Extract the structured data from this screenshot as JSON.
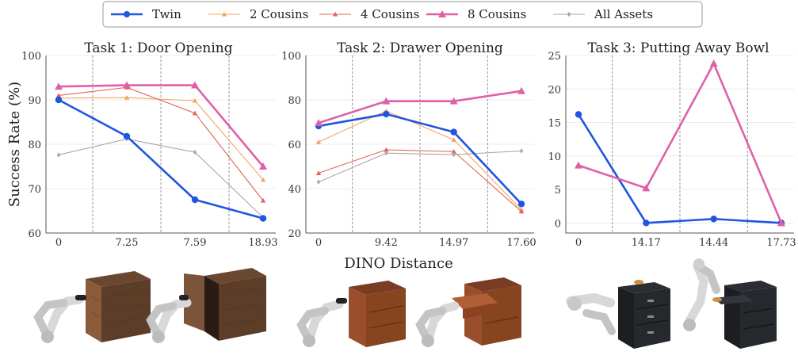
{
  "legend": {
    "items": [
      {
        "name": "Twin",
        "color": "#1f55e0",
        "marker": "circle",
        "width": 2.6
      },
      {
        "name": "2 Cousins",
        "color": "#f4a560",
        "marker": "triangle",
        "width": 1.1
      },
      {
        "name": "4 Cousins",
        "color": "#e0665e",
        "marker": "triangle",
        "width": 1.1
      },
      {
        "name": "8 Cousins",
        "color": "#e060a8",
        "marker": "triangle",
        "width": 2.6
      },
      {
        "name": "All Assets",
        "color": "#a8a8a8",
        "marker": "diamond",
        "width": 1.1
      }
    ]
  },
  "ylabel": "Success Rate (%)",
  "xlabel": "DINO Distance",
  "chart_data": [
    {
      "type": "line",
      "title": "Task 1: Door Opening",
      "categories": [
        "0",
        "7.25",
        "7.59",
        "18.93"
      ],
      "ylim": [
        60,
        100
      ],
      "yticks": [
        60,
        70,
        80,
        90,
        100
      ],
      "series": [
        {
          "name": "Twin",
          "values": [
            90.0,
            81.8,
            67.5,
            63.3
          ]
        },
        {
          "name": "2 Cousins",
          "values": [
            90.4,
            90.5,
            89.8,
            72.0
          ]
        },
        {
          "name": "4 Cousins",
          "values": [
            91.0,
            92.8,
            87.0,
            67.3
          ]
        },
        {
          "name": "8 Cousins",
          "values": [
            93.0,
            93.3,
            93.3,
            75.0
          ]
        },
        {
          "name": "All Assets",
          "values": [
            77.6,
            81.2,
            78.2,
            63.5
          ]
        }
      ]
    },
    {
      "type": "line",
      "title": "Task 2: Drawer Opening",
      "categories": [
        "0",
        "9.42",
        "14.97",
        "17.60"
      ],
      "ylim": [
        20,
        100
      ],
      "yticks": [
        20,
        40,
        60,
        80,
        100
      ],
      "series": [
        {
          "name": "Twin",
          "values": [
            68.2,
            73.6,
            65.5,
            33.1
          ]
        },
        {
          "name": "2 Cousins",
          "values": [
            61.0,
            75.0,
            62.0,
            30.5
          ]
        },
        {
          "name": "4 Cousins",
          "values": [
            47.0,
            57.5,
            56.7,
            29.7
          ]
        },
        {
          "name": "8 Cousins",
          "values": [
            69.6,
            79.4,
            79.4,
            84.0
          ]
        },
        {
          "name": "All Assets",
          "values": [
            43.0,
            56.0,
            55.3,
            57.0
          ]
        }
      ]
    },
    {
      "type": "line",
      "title": "Task 3: Putting Away Bowl",
      "categories": [
        "0",
        "14.17",
        "14.44",
        "17.73"
      ],
      "ylim": [
        -1.5,
        25
      ],
      "yticks": [
        0,
        5,
        10,
        15,
        20,
        25
      ],
      "series": [
        {
          "name": "Twin",
          "values": [
            16.2,
            0.0,
            0.6,
            0.0
          ]
        },
        {
          "name": "8 Cousins",
          "values": [
            8.6,
            5.2,
            23.8,
            0.0
          ]
        }
      ]
    }
  ]
}
